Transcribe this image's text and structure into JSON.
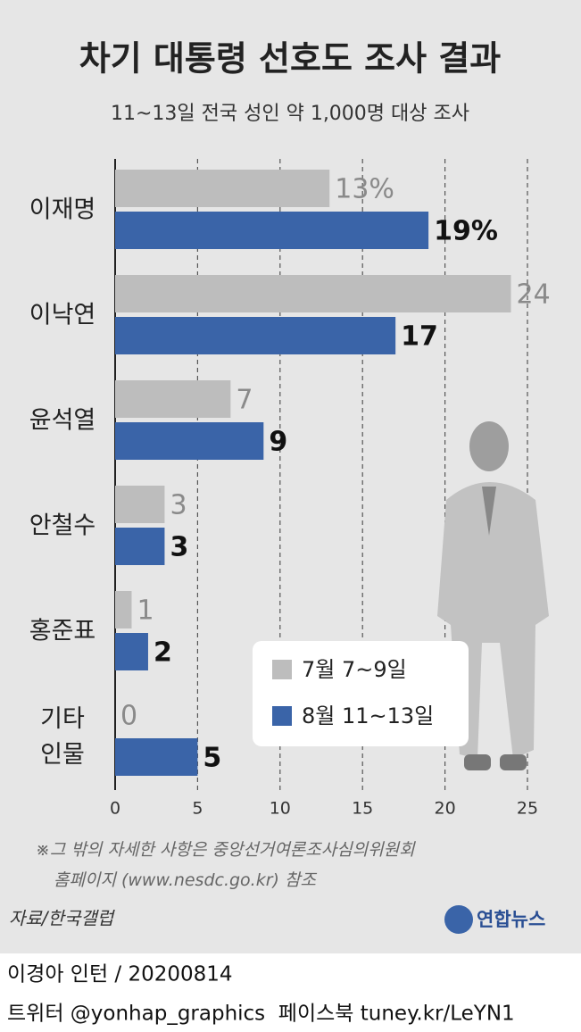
{
  "chart_data": {
    "type": "bar",
    "orientation": "horizontal",
    "title": "차기 대통령 선호도 조사 결과",
    "subtitle": "11~13일 전국 성인 약 1,000명 대상 조사",
    "categories": [
      "이재명",
      "이낙연",
      "윤석열",
      "안철수",
      "홍준표",
      "기타\n인물"
    ],
    "series": [
      {
        "name": "7월 7~9일",
        "color": "#bdbdbd",
        "values": [
          13,
          24,
          7,
          3,
          1,
          0
        ],
        "value_labels": [
          "13%",
          "24",
          "7",
          "3",
          "1",
          "0"
        ]
      },
      {
        "name": "8월 11~13일",
        "color": "#3a64a8",
        "values": [
          19,
          17,
          9,
          3,
          2,
          5
        ],
        "value_labels": [
          "19%",
          "17",
          "9",
          "3",
          "2",
          "5"
        ]
      }
    ],
    "xlim": [
      0,
      25
    ],
    "xticks": [
      0,
      5,
      10,
      15,
      20,
      25
    ],
    "grid": true,
    "note": "※그 밖의 자세한 사항은 중앙선거여론조사심의위원회\n홈페이지 (www.nesdc.go.kr) 참조",
    "source": "자료/한국갤럽",
    "logo": "연합뉴스",
    "credit": "이경아 인턴 / 20200814",
    "social": "트위터 @yonhap_graphics  페이스북 tuney.kr/LeYN1"
  }
}
